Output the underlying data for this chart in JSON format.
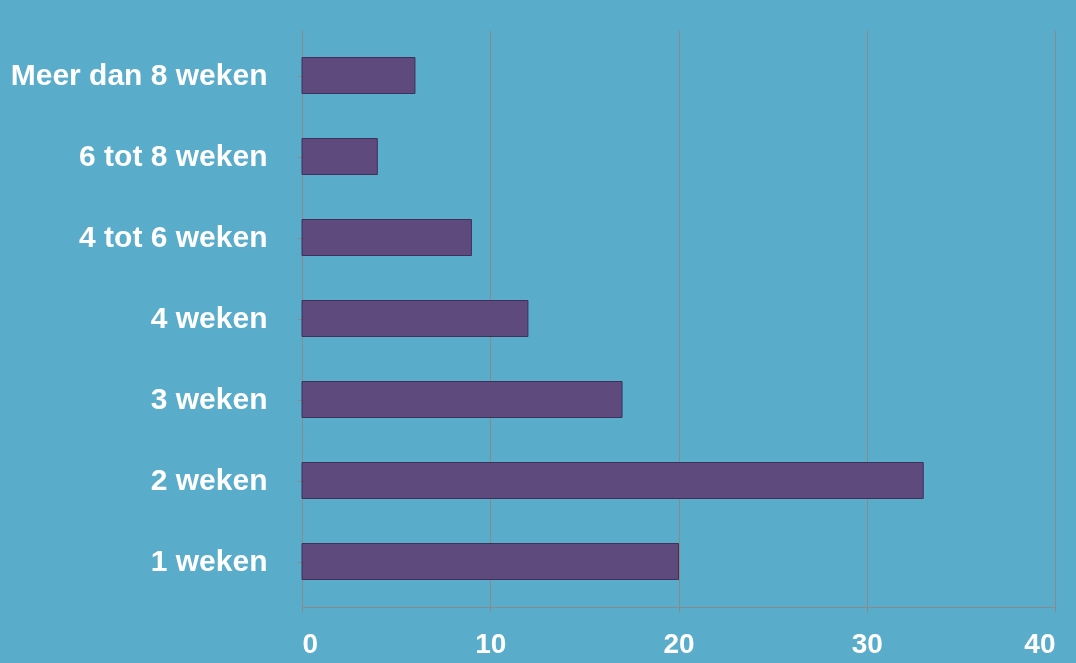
{
  "chart_data": {
    "type": "bar",
    "orientation": "horizontal",
    "categories": [
      "Meer dan 8 weken",
      "6 tot 8 weken",
      "4 tot 6 weken",
      "4 weken",
      "3 weken",
      "2 weken",
      "1 weken"
    ],
    "values": [
      6,
      4,
      9,
      12,
      17,
      33,
      20
    ],
    "color": "#5f4a7e",
    "xlim": [
      0,
      40
    ],
    "xticks": [
      0,
      10,
      20,
      30,
      40
    ],
    "grid": "x"
  }
}
